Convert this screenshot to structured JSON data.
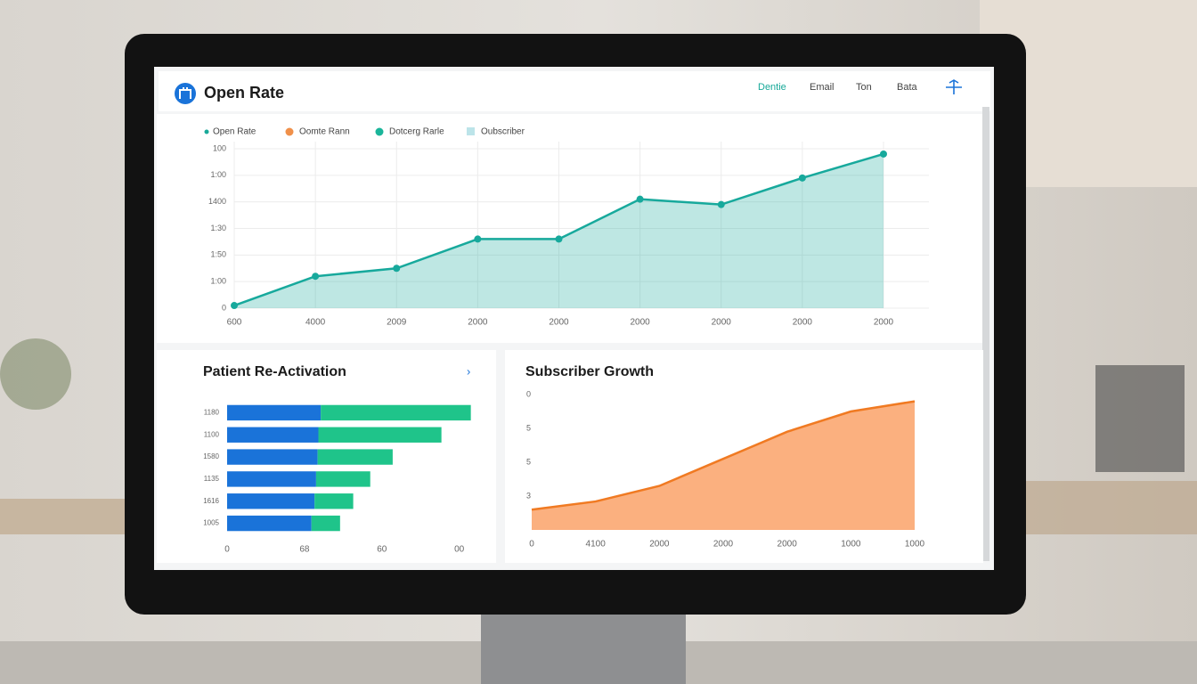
{
  "header": {
    "title": "Open Rate",
    "nav": [
      "Dentie",
      "Email",
      "Ton",
      "Bata"
    ]
  },
  "chart_data": [
    {
      "type": "line",
      "area": true,
      "grid": true,
      "legend": [
        {
          "name": "Open Rate",
          "color": "#18a999"
        },
        {
          "name": "Oomte Rann",
          "color": "#f0904a"
        },
        {
          "name": "Dotcerg Rarle",
          "color": "#1ab59a"
        },
        {
          "name": "Oubscriber",
          "color": "#9fd8e0"
        }
      ],
      "categories": [
        "600",
        "4000",
        "2009",
        "2000",
        "2000",
        "2000",
        "2000",
        "2000",
        "2000"
      ],
      "series": [
        {
          "color": "#17a99c",
          "values": [
            0.1,
            1.2,
            1.5,
            2.6,
            2.6,
            4.1,
            3.9,
            4.9,
            5.8
          ]
        }
      ],
      "ylim": [
        0,
        6
      ],
      "yticks": [
        {
          "value": 0,
          "label": "0"
        },
        {
          "value": 1,
          "label": "1:00"
        },
        {
          "value": 2,
          "label": "1:50"
        },
        {
          "value": 3,
          "label": "1:30"
        },
        {
          "value": 4,
          "label": "1400"
        },
        {
          "value": 5,
          "label": "1:00"
        },
        {
          "value": 6,
          "label": "100"
        }
      ]
    },
    {
      "type": "bar",
      "orientation": "horizontal",
      "stacked": true,
      "title": "Patient Re-Activation",
      "link": "›",
      "categories": [
        "1180",
        "1100",
        "1580",
        "1135",
        "1616",
        "1005"
      ],
      "series": [
        {
          "color": "#1a73d9",
          "values": [
            1.21,
            1.18,
            1.17,
            1.15,
            1.13,
            1.09
          ]
        },
        {
          "color": "#1fc48a",
          "values": [
            1.94,
            1.59,
            0.97,
            0.7,
            0.5,
            0.37
          ]
        }
      ],
      "xlim": [
        0,
        3.2
      ],
      "xticks": [
        {
          "value": 0,
          "label": "0"
        },
        {
          "value": 1,
          "label": "68"
        },
        {
          "value": 2,
          "label": "60"
        },
        {
          "value": 3,
          "label": "00"
        }
      ]
    },
    {
      "type": "line",
      "area": true,
      "title": "Subscriber Growth",
      "categories": [
        "0",
        "4100",
        "2000",
        "2000",
        "2000",
        "1000",
        "1000"
      ],
      "series": [
        {
          "color": "#f07a22",
          "fill": "#fbac78",
          "values": [
            0.6,
            0.84,
            1.3,
            2.1,
            2.9,
            3.5,
            3.8
          ]
        }
      ],
      "ylim": [
        0,
        4.1
      ],
      "yticks": [
        {
          "value": 1,
          "label": "3"
        },
        {
          "value": 2,
          "label": "5"
        },
        {
          "value": 3,
          "label": "5"
        },
        {
          "value": 4,
          "label": "0"
        }
      ]
    }
  ]
}
